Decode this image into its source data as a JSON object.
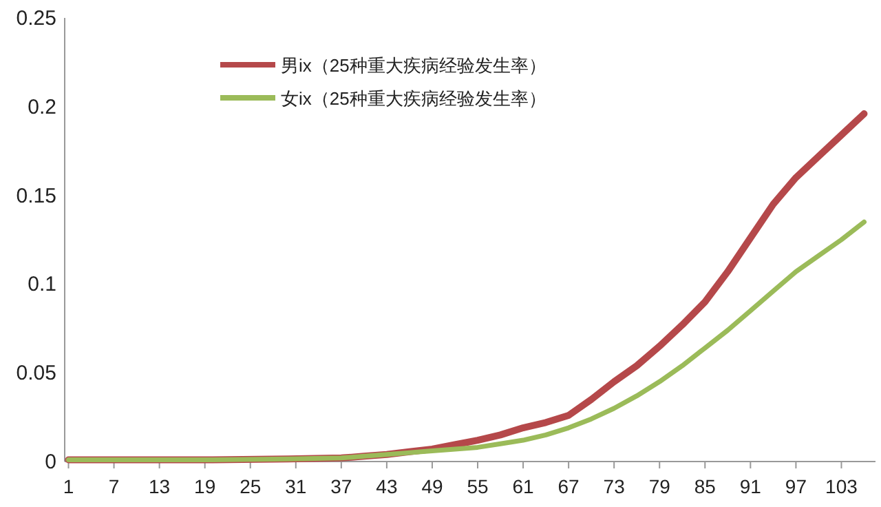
{
  "chart_data": {
    "type": "line",
    "x": [
      1,
      10,
      20,
      30,
      37,
      40,
      43,
      46,
      49,
      52,
      55,
      58,
      61,
      64,
      67,
      70,
      73,
      76,
      79,
      82,
      85,
      88,
      91,
      94,
      97,
      100,
      103,
      106
    ],
    "series": [
      {
        "name": "男ix（25种重大疾病经验发生率）",
        "color": "#b5484a",
        "values": [
          0.001,
          0.001,
          0.001,
          0.0015,
          0.002,
          0.003,
          0.004,
          0.0055,
          0.007,
          0.0095,
          0.012,
          0.015,
          0.019,
          0.022,
          0.026,
          0.035,
          0.045,
          0.054,
          0.065,
          0.077,
          0.09,
          0.107,
          0.126,
          0.145,
          0.16,
          0.172,
          0.184,
          0.196
        ]
      },
      {
        "name": "女ix（25种重大疾病经验发生率）",
        "color": "#9bbb59",
        "values": [
          0.001,
          0.001,
          0.001,
          0.0015,
          0.002,
          0.003,
          0.004,
          0.005,
          0.006,
          0.007,
          0.008,
          0.01,
          0.012,
          0.015,
          0.019,
          0.024,
          0.03,
          0.037,
          0.045,
          0.054,
          0.064,
          0.074,
          0.085,
          0.096,
          0.107,
          0.116,
          0.125,
          0.135
        ]
      }
    ],
    "xlim": [
      0.5,
      107.5
    ],
    "xticks": [
      1,
      7,
      13,
      19,
      25,
      31,
      37,
      43,
      49,
      55,
      61,
      67,
      73,
      79,
      85,
      91,
      97,
      103
    ],
    "ylim": [
      0,
      0.25
    ],
    "yticks": [
      0,
      0.05,
      0.1,
      0.15,
      0.2,
      0.25
    ],
    "grid": false,
    "legend": "top left",
    "marker": "none",
    "line_style": "solid"
  }
}
